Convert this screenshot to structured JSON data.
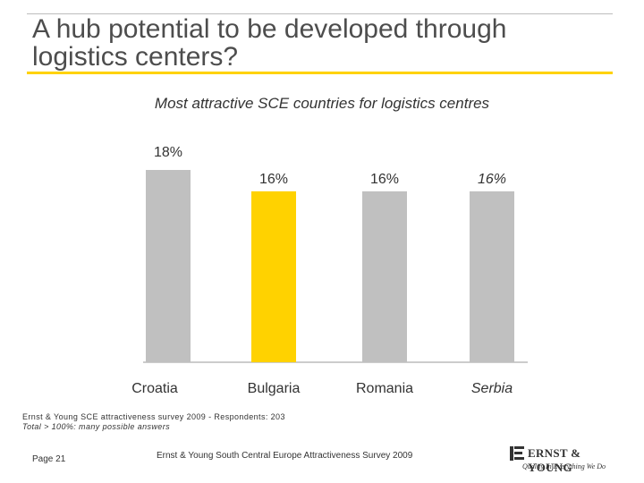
{
  "header": {
    "title": "A hub potential to be developed through logistics centers?",
    "subtitle": "Most attractive SCE countries for logistics centres"
  },
  "colors": {
    "bar_default": "#c0c0c0",
    "bar_highlight": "#ffd200",
    "accent": "#ffd200"
  },
  "chart_data": {
    "type": "bar",
    "title": "Most attractive SCE countries for logistics centres",
    "categories": [
      "Croatia",
      "Bulgaria",
      "Romania",
      "Serbia"
    ],
    "values": [
      18,
      16,
      16,
      16
    ],
    "value_labels": [
      "18%",
      "16%",
      "16%",
      "16%"
    ],
    "highlight_index": 1,
    "unit": "%",
    "ylim": [
      0,
      18
    ],
    "grid": false,
    "xlabel": "",
    "ylabel": ""
  },
  "source": {
    "line1": "Ernst & Young SCE attractiveness survey 2009 - Respondents: 203",
    "line2": "Total > 100%: many possible answers"
  },
  "footer": {
    "page": "Page 21",
    "text": "Ernst & Young South Central Europe Attractiveness Survey 2009"
  },
  "logo": {
    "name": "ERNST & YOUNG",
    "tagline": "Quality In Everything We Do"
  }
}
